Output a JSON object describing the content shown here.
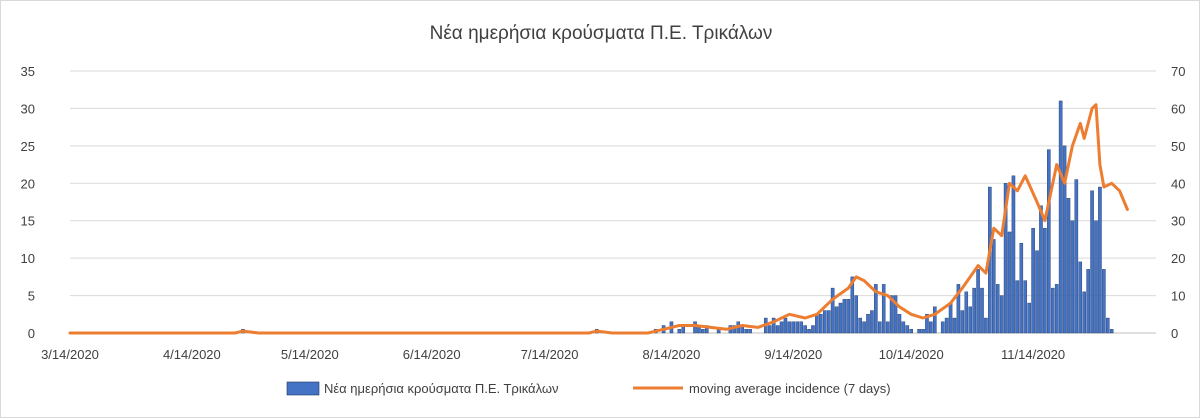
{
  "chart_data": {
    "type": "bar",
    "title": "Νέα ημερήσια κρούσματα Π.Ε. Τρικάλων",
    "x_start": "3/14/2020",
    "x_end": "11/30/2020",
    "x_tick_labels": [
      "3/14/2020",
      "4/14/2020",
      "5/14/2020",
      "6/14/2020",
      "7/14/2020",
      "8/14/2020",
      "9/14/2020",
      "10/14/2020",
      "11/14/2020"
    ],
    "y_left": {
      "min": 0,
      "max": 35,
      "ticks": [
        0,
        5,
        10,
        15,
        20,
        25,
        30,
        35
      ]
    },
    "y_right": {
      "min": 0,
      "max": 70,
      "ticks": [
        0,
        10,
        20,
        30,
        40,
        50,
        60,
        70
      ]
    },
    "grid": true,
    "legend_position": "bottom",
    "series": [
      {
        "name": "Νέα ημερήσια κρούσματα Π.Ε. Τρικάλων",
        "axis": "left",
        "chart": "bar",
        "color": "#4472c4",
        "points": [
          [
            "4/27/2020",
            0.5
          ],
          [
            "7/26/2020",
            0.5
          ],
          [
            "8/10/2020",
            0.5
          ],
          [
            "8/12/2020",
            1
          ],
          [
            "8/14/2020",
            1.5
          ],
          [
            "8/16/2020",
            0.5
          ],
          [
            "8/17/2020",
            1
          ],
          [
            "8/20/2020",
            1.5
          ],
          [
            "8/21/2020",
            1
          ],
          [
            "8/22/2020",
            0.5
          ],
          [
            "8/23/2020",
            1
          ],
          [
            "8/26/2020",
            0.5
          ],
          [
            "8/29/2020",
            1
          ],
          [
            "8/30/2020",
            1
          ],
          [
            "8/31/2020",
            1.5
          ],
          [
            "9/1/2020",
            1
          ],
          [
            "9/2/2020",
            0.5
          ],
          [
            "9/3/2020",
            0.5
          ],
          [
            "9/7/2020",
            2
          ],
          [
            "9/8/2020",
            1
          ],
          [
            "9/9/2020",
            2
          ],
          [
            "9/10/2020",
            1
          ],
          [
            "9/11/2020",
            1.5
          ],
          [
            "9/12/2020",
            2
          ],
          [
            "9/13/2020",
            1.5
          ],
          [
            "9/14/2020",
            1.5
          ],
          [
            "9/15/2020",
            1.5
          ],
          [
            "9/16/2020",
            1.5
          ],
          [
            "9/17/2020",
            1
          ],
          [
            "9/18/2020",
            0.5
          ],
          [
            "9/19/2020",
            1
          ],
          [
            "9/20/2020",
            2.5
          ],
          [
            "9/21/2020",
            2.5
          ],
          [
            "9/22/2020",
            3
          ],
          [
            "9/23/2020",
            3
          ],
          [
            "9/24/2020",
            6
          ],
          [
            "9/25/2020",
            3.5
          ],
          [
            "9/26/2020",
            4
          ],
          [
            "9/27/2020",
            4.5
          ],
          [
            "9/28/2020",
            4.5
          ],
          [
            "9/29/2020",
            7.5
          ],
          [
            "9/30/2020",
            5
          ],
          [
            "10/1/2020",
            2
          ],
          [
            "10/2/2020",
            1.5
          ],
          [
            "10/3/2020",
            2.5
          ],
          [
            "10/4/2020",
            3
          ],
          [
            "10/5/2020",
            6.5
          ],
          [
            "10/6/2020",
            1.5
          ],
          [
            "10/7/2020",
            6.5
          ],
          [
            "10/8/2020",
            1.5
          ],
          [
            "10/9/2020",
            5
          ],
          [
            "10/10/2020",
            5
          ],
          [
            "10/11/2020",
            2.5
          ],
          [
            "10/12/2020",
            1.5
          ],
          [
            "10/13/2020",
            1
          ],
          [
            "10/14/2020",
            0.5
          ],
          [
            "10/16/2020",
            0.5
          ],
          [
            "10/17/2020",
            0.5
          ],
          [
            "10/18/2020",
            2.5
          ],
          [
            "10/19/2020",
            1.5
          ],
          [
            "10/20/2020",
            3.5
          ],
          [
            "10/22/2020",
            1.5
          ],
          [
            "10/23/2020",
            2
          ],
          [
            "10/24/2020",
            4
          ],
          [
            "10/25/2020",
            2
          ],
          [
            "10/26/2020",
            6.5
          ],
          [
            "10/27/2020",
            3
          ],
          [
            "10/28/2020",
            5.5
          ],
          [
            "10/29/2020",
            3.5
          ],
          [
            "10/30/2020",
            6
          ],
          [
            "10/31/2020",
            8.5
          ],
          [
            "11/1/2020",
            6
          ],
          [
            "11/2/2020",
            2
          ],
          [
            "11/3/2020",
            19.5
          ],
          [
            "11/4/2020",
            12.5
          ],
          [
            "11/5/2020",
            6.5
          ],
          [
            "11/6/2020",
            5
          ],
          [
            "11/7/2020",
            20
          ],
          [
            "11/8/2020",
            13.5
          ],
          [
            "11/9/2020",
            21
          ],
          [
            "11/10/2020",
            7
          ],
          [
            "11/11/2020",
            12
          ],
          [
            "11/12/2020",
            7
          ],
          [
            "11/13/2020",
            4
          ],
          [
            "11/14/2020",
            14
          ],
          [
            "11/15/2020",
            11
          ],
          [
            "11/16/2020",
            17
          ],
          [
            "11/17/2020",
            14
          ],
          [
            "11/18/2020",
            24.5
          ],
          [
            "11/19/2020",
            6
          ],
          [
            "11/20/2020",
            6.5
          ],
          [
            "11/21/2020",
            31
          ],
          [
            "11/22/2020",
            25
          ],
          [
            "11/23/2020",
            18
          ],
          [
            "11/24/2020",
            15
          ],
          [
            "11/25/2020",
            20.5
          ],
          [
            "11/26/2020",
            9.5
          ],
          [
            "11/27/2020",
            5.5
          ],
          [
            "11/28/2020",
            8.5
          ],
          [
            "11/29/2020",
            19
          ],
          [
            "11/30/2020",
            15
          ],
          [
            "12/1/2020",
            19.5
          ],
          [
            "12/2/2020",
            8.5
          ],
          [
            "12/3/2020",
            2
          ],
          [
            "12/4/2020",
            0.5
          ]
        ]
      },
      {
        "name": "moving average incidence (7 days)",
        "axis": "right",
        "chart": "line",
        "color": "#ed7d31",
        "points": [
          [
            "3/14/2020",
            0
          ],
          [
            "4/25/2020",
            0
          ],
          [
            "4/27/2020",
            0.5
          ],
          [
            "5/1/2020",
            0
          ],
          [
            "7/24/2020",
            0
          ],
          [
            "7/26/2020",
            0.5
          ],
          [
            "7/30/2020",
            0
          ],
          [
            "8/8/2020",
            0
          ],
          [
            "8/12/2020",
            1
          ],
          [
            "8/16/2020",
            2
          ],
          [
            "8/20/2020",
            2
          ],
          [
            "8/24/2020",
            1.5
          ],
          [
            "8/28/2020",
            1
          ],
          [
            "9/1/2020",
            2
          ],
          [
            "9/5/2020",
            1.5
          ],
          [
            "9/9/2020",
            3
          ],
          [
            "9/13/2020",
            5
          ],
          [
            "9/17/2020",
            4
          ],
          [
            "9/20/2020",
            5
          ],
          [
            "9/24/2020",
            9
          ],
          [
            "9/28/2020",
            12
          ],
          [
            "9/30/2020",
            15
          ],
          [
            "10/2/2020",
            14
          ],
          [
            "10/5/2020",
            11
          ],
          [
            "10/8/2020",
            10
          ],
          [
            "10/11/2020",
            7
          ],
          [
            "10/14/2020",
            5
          ],
          [
            "10/17/2020",
            4
          ],
          [
            "10/20/2020",
            5
          ],
          [
            "10/24/2020",
            8
          ],
          [
            "10/27/2020",
            12
          ],
          [
            "10/31/2020",
            18
          ],
          [
            "11/2/2020",
            16
          ],
          [
            "11/4/2020",
            28
          ],
          [
            "11/6/2020",
            26
          ],
          [
            "11/8/2020",
            40
          ],
          [
            "11/10/2020",
            38
          ],
          [
            "11/12/2020",
            42
          ],
          [
            "11/15/2020",
            35
          ],
          [
            "11/17/2020",
            30
          ],
          [
            "11/20/2020",
            45
          ],
          [
            "11/22/2020",
            40
          ],
          [
            "11/24/2020",
            50
          ],
          [
            "11/26/2020",
            56
          ],
          [
            "11/27/2020",
            52
          ],
          [
            "11/29/2020",
            60
          ],
          [
            "11/30/2020",
            61
          ],
          [
            "12/1/2020",
            45
          ],
          [
            "12/2/2020",
            39
          ],
          [
            "12/4/2020",
            40
          ],
          [
            "12/6/2020",
            38
          ],
          [
            "12/8/2020",
            33
          ]
        ]
      }
    ]
  }
}
